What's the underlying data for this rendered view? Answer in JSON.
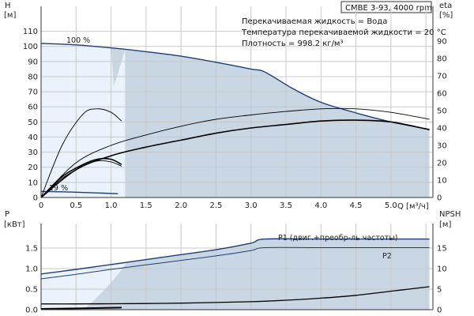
{
  "title": "CMBE 3-93, 4000 rpm",
  "notes": [
    "Перекачиваемая жидкость = Вода",
    "Температура перекачиваемой жидкости = 20 °C",
    "Плотность = 998.2 кг/м³"
  ],
  "colors": {
    "dark_blue": "#1f3f73",
    "area_fill": "#c9d6e3",
    "light_fill": "#eaf2fb",
    "black": "#000000"
  },
  "chart_data": [
    {
      "type": "line",
      "axes": {
        "x": {
          "label": "Q [м³/ч]",
          "range": [
            0,
            5.6
          ],
          "ticks": [
            "0",
            "0.5",
            "1.0",
            "1.5",
            "2.0",
            "2.5",
            "3.0",
            "3.5",
            "4.0",
            "4.5",
            "5.0"
          ]
        },
        "y_left": {
          "label_top": "H",
          "label_unit": "[м]",
          "range": [
            0,
            115
          ],
          "ticks": [
            "0",
            "10",
            "20",
            "30",
            "40",
            "50",
            "60",
            "70",
            "80",
            "90",
            "100",
            "110"
          ]
        },
        "y_right": {
          "label_top": "eta",
          "label_unit": "[%]",
          "range": [
            0,
            100
          ],
          "ticks": [
            "0",
            "10",
            "20",
            "30",
            "40",
            "50",
            "60",
            "70",
            "80",
            "90"
          ]
        }
      },
      "annotations": [
        "100 %",
        "19 %"
      ],
      "grid": true,
      "series": [
        {
          "role": "H_max",
          "axis": "left",
          "x": [
            0,
            0.5,
            1.0,
            1.5,
            2.0,
            2.5,
            3.0,
            3.2,
            3.6,
            4.0,
            4.5,
            5.0,
            5.55
          ],
          "y": [
            102,
            101,
            99,
            96.5,
            93.5,
            89.5,
            85,
            83,
            72,
            63,
            56,
            50,
            45
          ]
        },
        {
          "role": "H_min",
          "axis": "left",
          "x": [
            0,
            0.5,
            1.1
          ],
          "y": [
            4,
            3.5,
            2.5
          ]
        },
        {
          "role": "eta_max",
          "axis": "right",
          "x": [
            0,
            0.5,
            1.0,
            1.5,
            2.0,
            2.5,
            3.0,
            3.5,
            4.0,
            4.5,
            5.0,
            5.55
          ],
          "y": [
            0,
            20,
            30,
            36,
            41,
            45,
            47.5,
            49.5,
            51,
            51,
            49,
            45
          ]
        },
        {
          "role": "eta_driver",
          "axis": "right",
          "x": [
            0,
            0.5,
            1.0,
            1.5,
            2.0,
            2.5,
            3.0,
            3.5,
            4.0,
            4.5,
            5.0,
            5.55
          ],
          "y": [
            0,
            16,
            24,
            29,
            33,
            37,
            40,
            42,
            44,
            44.5,
            43.5,
            39
          ]
        },
        {
          "role": "eta_min_stage",
          "axis": "right",
          "x": [
            0,
            0.3,
            0.6,
            0.8,
            1.0,
            1.15
          ],
          "y": [
            0,
            30,
            48,
            51,
            49,
            44
          ]
        },
        {
          "role": "eta_min_driver",
          "axis": "right",
          "x": [
            0,
            0.3,
            0.6,
            0.8,
            1.0,
            1.15
          ],
          "y": [
            0,
            12,
            19,
            22,
            22,
            19
          ]
        },
        {
          "role": "eta_min_eta",
          "axis": "right",
          "x": [
            0,
            0.3,
            0.6,
            0.8,
            1.0,
            1.15
          ],
          "y": [
            0,
            11,
            18,
            21,
            20.5,
            18
          ]
        }
      ]
    },
    {
      "type": "line",
      "axes": {
        "x": {
          "range": [
            0,
            5.6
          ]
        },
        "y_left": {
          "label_top": "P",
          "label_unit": "[кВт]",
          "range": [
            0,
            2.0
          ],
          "ticks": [
            "0.0",
            "0.5",
            "1.0",
            "1.5"
          ]
        },
        "y_right": {
          "label_top": "NPSH",
          "label_unit": "[м]",
          "range": [
            0,
            20
          ],
          "ticks": [
            "0",
            "5",
            "10",
            "15"
          ]
        }
      },
      "grid": true,
      "series": [
        {
          "name": "P1 (двиг.+преобр-ль частоты)",
          "axis": "left",
          "x": [
            0,
            0.5,
            1.0,
            1.5,
            2.0,
            2.5,
            3.0,
            3.2,
            4.0,
            5.0,
            5.55
          ],
          "y": [
            0.87,
            0.98,
            1.1,
            1.22,
            1.34,
            1.46,
            1.62,
            1.72,
            1.72,
            1.72,
            1.72
          ]
        },
        {
          "name": "P2",
          "axis": "left",
          "x": [
            0,
            0.5,
            1.0,
            1.5,
            2.0,
            2.5,
            3.0,
            3.2,
            4.0,
            5.0,
            5.55
          ],
          "y": [
            0.75,
            0.86,
            0.98,
            1.09,
            1.2,
            1.31,
            1.44,
            1.51,
            1.51,
            1.51,
            1.51
          ]
        },
        {
          "role": "P_min",
          "axis": "left",
          "x": [
            0,
            0.5,
            1.15
          ],
          "y": [
            0.02,
            0.03,
            0.05
          ]
        },
        {
          "role": "NPSH",
          "axis": "right",
          "x": [
            0,
            0.5,
            1.0,
            1.5,
            2.0,
            2.5,
            3.0,
            3.5,
            4.0,
            4.5,
            5.0,
            5.55
          ],
          "y": [
            1.4,
            1.4,
            1.45,
            1.5,
            1.6,
            1.75,
            1.95,
            2.3,
            2.8,
            3.5,
            4.5,
            5.6
          ]
        }
      ]
    }
  ]
}
